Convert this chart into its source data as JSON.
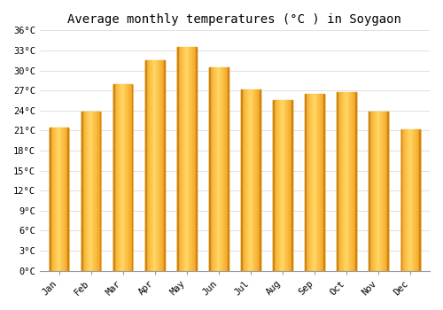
{
  "title": "Average monthly temperatures (°C ) in Soygaon",
  "months": [
    "Jan",
    "Feb",
    "Mar",
    "Apr",
    "May",
    "Jun",
    "Jul",
    "Aug",
    "Sep",
    "Oct",
    "Nov",
    "Dec"
  ],
  "temperatures": [
    21.5,
    23.8,
    28.0,
    31.5,
    33.5,
    30.5,
    27.2,
    25.5,
    26.5,
    26.8,
    23.8,
    21.2
  ],
  "bar_color_center": "#FFD966",
  "bar_color_edge": "#F5A623",
  "bar_color_dark": "#C47D0E",
  "ylim": [
    0,
    36
  ],
  "yticks": [
    0,
    3,
    6,
    9,
    12,
    15,
    18,
    21,
    24,
    27,
    30,
    33,
    36
  ],
  "ytick_labels": [
    "0°C",
    "3°C",
    "6°C",
    "9°C",
    "12°C",
    "15°C",
    "18°C",
    "21°C",
    "24°C",
    "27°C",
    "30°C",
    "33°C",
    "36°C"
  ],
  "background_color": "#ffffff",
  "grid_color": "#e0e0e0",
  "title_fontsize": 10,
  "tick_fontsize": 7.5,
  "bar_width": 0.6,
  "figsize": [
    5.0,
    3.5
  ],
  "dpi": 100
}
